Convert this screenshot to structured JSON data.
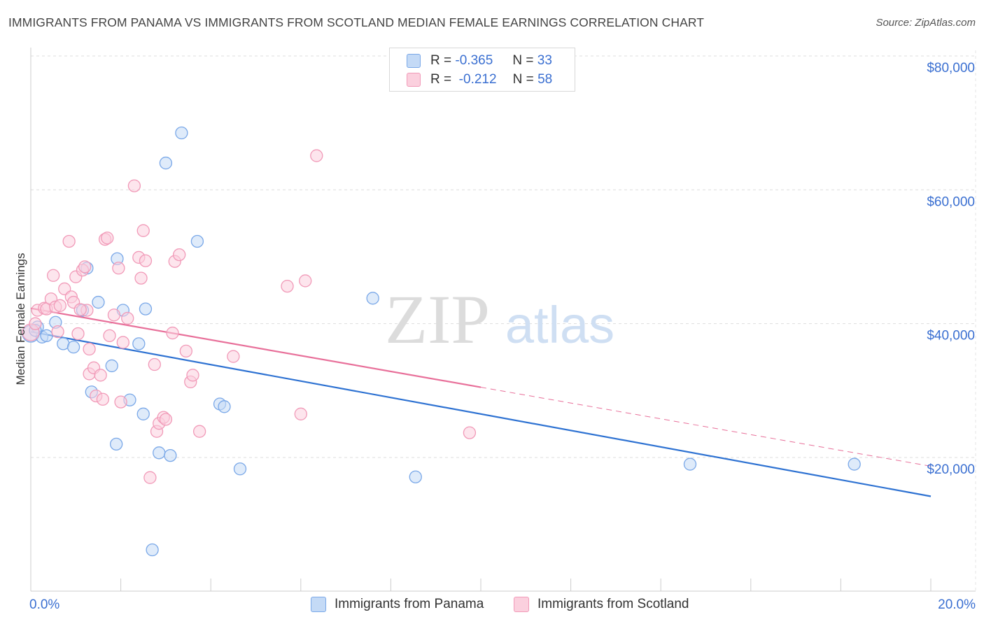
{
  "title": "IMMIGRANTS FROM PANAMA VS IMMIGRANTS FROM SCOTLAND MEDIAN FEMALE EARNINGS CORRELATION CHART",
  "source": "Source: ZipAtlas.com",
  "watermark": {
    "zip": "ZIP",
    "atlas": "atlas"
  },
  "legend": {
    "r_label": "R =",
    "n_label": "N =",
    "series": [
      {
        "r": "-0.365",
        "n": "33"
      },
      {
        "r": "-0.212",
        "n": "58"
      }
    ]
  },
  "chart_data": {
    "type": "scatter",
    "title": "IMMIGRANTS FROM PANAMA VS IMMIGRANTS FROM SCOTLAND MEDIAN FEMALE EARNINGS CORRELATION CHART",
    "xlabel": "",
    "ylabel": "Median Female Earnings",
    "xlim": [
      0,
      20
    ],
    "ylim": [
      2000,
      83000
    ],
    "x_tick_labels": [
      "0.0%",
      "20.0%"
    ],
    "y_ticks": [
      20000,
      40000,
      60000,
      80000
    ],
    "y_tick_labels": [
      "$20,000",
      "$40,000",
      "$60,000",
      "$80,000"
    ],
    "grid": true,
    "series": [
      {
        "name": "Immigrants from Panama",
        "color": "#7aa8e8",
        "fill": "#c4daf6",
        "line_color": "#2e72d2",
        "trend": {
          "x0": 0.0,
          "y0": 38800,
          "x1": 20.0,
          "y1": 14200,
          "dashed_from": null
        },
        "points": [
          [
            0.0,
            38500
          ],
          [
            0.15,
            39500
          ],
          [
            0.25,
            38000
          ],
          [
            0.35,
            38200
          ],
          [
            0.55,
            40200
          ],
          [
            0.72,
            37000
          ],
          [
            0.95,
            36500
          ],
          [
            1.15,
            42000
          ],
          [
            1.25,
            48300
          ],
          [
            1.35,
            29800
          ],
          [
            1.5,
            43200
          ],
          [
            1.8,
            33700
          ],
          [
            1.92,
            49700
          ],
          [
            1.9,
            22000
          ],
          [
            2.05,
            42000
          ],
          [
            2.2,
            28600
          ],
          [
            2.4,
            37000
          ],
          [
            2.5,
            26500
          ],
          [
            2.55,
            42200
          ],
          [
            2.7,
            6200
          ],
          [
            2.85,
            20700
          ],
          [
            3.0,
            64000
          ],
          [
            3.1,
            20300
          ],
          [
            3.35,
            68500
          ],
          [
            3.7,
            52300
          ],
          [
            4.2,
            28000
          ],
          [
            4.3,
            27600
          ],
          [
            4.65,
            18300
          ],
          [
            7.6,
            43800
          ],
          [
            8.55,
            17100
          ],
          [
            14.65,
            19000
          ],
          [
            18.3,
            19000
          ],
          [
            0.1,
            39000
          ]
        ]
      },
      {
        "name": "Immigrants from Scotland",
        "color": "#f19ab8",
        "fill": "#fbd0de",
        "line_color": "#e8709a",
        "trend": {
          "x0": 0.0,
          "y0": 42300,
          "x1": 10.0,
          "y1": 30500,
          "dashed_from": 10.0,
          "x2": 20.0,
          "y2": 18700
        },
        "points": [
          [
            0.0,
            38700
          ],
          [
            0.1,
            40000
          ],
          [
            0.15,
            42000
          ],
          [
            0.3,
            42300
          ],
          [
            0.35,
            42200
          ],
          [
            0.45,
            43700
          ],
          [
            0.5,
            47200
          ],
          [
            0.55,
            42500
          ],
          [
            0.65,
            42700
          ],
          [
            0.75,
            45200
          ],
          [
            0.85,
            52300
          ],
          [
            0.9,
            44000
          ],
          [
            0.95,
            43200
          ],
          [
            1.05,
            38500
          ],
          [
            1.0,
            47000
          ],
          [
            1.15,
            48000
          ],
          [
            1.2,
            48500
          ],
          [
            1.25,
            42000
          ],
          [
            1.3,
            32500
          ],
          [
            1.3,
            36200
          ],
          [
            1.4,
            33400
          ],
          [
            1.45,
            29200
          ],
          [
            1.55,
            32300
          ],
          [
            1.6,
            28700
          ],
          [
            1.65,
            52600
          ],
          [
            1.7,
            52800
          ],
          [
            1.85,
            41300
          ],
          [
            1.95,
            48300
          ],
          [
            2.0,
            28300
          ],
          [
            2.05,
            37200
          ],
          [
            2.15,
            40800
          ],
          [
            2.3,
            60600
          ],
          [
            2.4,
            49900
          ],
          [
            2.45,
            46800
          ],
          [
            2.5,
            53900
          ],
          [
            2.55,
            49400
          ],
          [
            2.65,
            17000
          ],
          [
            2.75,
            33900
          ],
          [
            2.8,
            23900
          ],
          [
            2.85,
            25100
          ],
          [
            2.95,
            26000
          ],
          [
            3.0,
            25700
          ],
          [
            3.15,
            38600
          ],
          [
            3.2,
            49300
          ],
          [
            3.3,
            50300
          ],
          [
            3.45,
            35900
          ],
          [
            3.55,
            31300
          ],
          [
            3.6,
            32300
          ],
          [
            3.75,
            23900
          ],
          [
            4.5,
            35100
          ],
          [
            5.7,
            45600
          ],
          [
            6.0,
            26500
          ],
          [
            6.1,
            46400
          ],
          [
            6.35,
            65100
          ],
          [
            9.75,
            23700
          ],
          [
            1.75,
            38200
          ],
          [
            0.6,
            38800
          ],
          [
            1.1,
            42100
          ]
        ]
      }
    ]
  },
  "bottom_legend": [
    "Immigrants from Panama",
    "Immigrants from Scotland"
  ]
}
